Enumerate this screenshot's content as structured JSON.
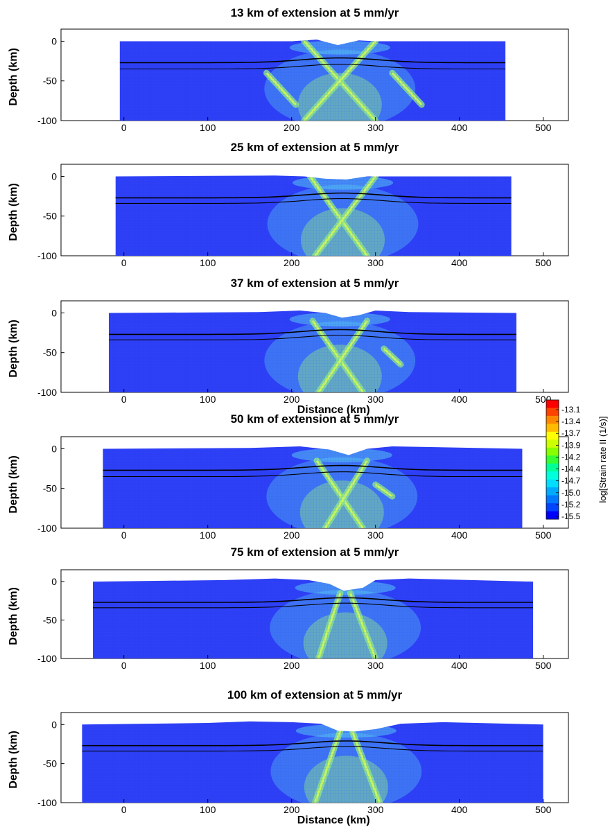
{
  "chart_data": [
    {
      "type": "heatmap",
      "title": "13 km of extension at 5 mm/yr",
      "ylabel": "Depth (km)",
      "xlabel": "",
      "xlim": [
        -75,
        530
      ],
      "ylim": [
        -100,
        10
      ],
      "xticks": [
        0,
        100,
        200,
        300,
        400,
        500
      ],
      "yticks": [
        0,
        -50,
        -100
      ],
      "domain_x": [
        -5,
        455
      ],
      "moho_depths": [
        -27,
        -35
      ],
      "shear_bands": [
        [
          215,
          0,
          300,
          -100
        ],
        [
          300,
          0,
          215,
          -100
        ],
        [
          170,
          -40,
          205,
          -80
        ],
        [
          320,
          -40,
          355,
          -80
        ]
      ],
      "topo": [
        [
          -5,
          0
        ],
        [
          200,
          0
        ],
        [
          230,
          2
        ],
        [
          255,
          -5
        ],
        [
          280,
          1
        ],
        [
          300,
          0
        ],
        [
          455,
          0
        ]
      ]
    },
    {
      "type": "heatmap",
      "title": "25 km of extension at 5 mm/yr",
      "ylabel": "Depth (km)",
      "xlabel": "",
      "xlim": [
        -75,
        530
      ],
      "ylim": [
        -100,
        10
      ],
      "xticks": [
        0,
        100,
        200,
        300,
        400,
        500
      ],
      "yticks": [
        0,
        -50,
        -100
      ],
      "domain_x": [
        -10,
        462
      ],
      "moho_depths": [
        -27,
        -34
      ],
      "shear_bands": [
        [
          222,
          0,
          290,
          -100
        ],
        [
          300,
          0,
          228,
          -100
        ]
      ],
      "topo": [
        [
          -10,
          0
        ],
        [
          180,
          1
        ],
        [
          215,
          0
        ],
        [
          240,
          -3
        ],
        [
          265,
          -4
        ],
        [
          290,
          0
        ],
        [
          462,
          0
        ]
      ]
    },
    {
      "type": "heatmap",
      "title": "37 km of extension at 5 mm/yr",
      "ylabel": "Depth (km)",
      "xlabel": "Distance (km)",
      "xlim": [
        -75,
        530
      ],
      "ylim": [
        -100,
        10
      ],
      "xticks": [
        0,
        100,
        200,
        300,
        400,
        500
      ],
      "yticks": [
        0,
        -50,
        -100
      ],
      "domain_x": [
        -18,
        468
      ],
      "moho_depths": [
        -27,
        -34
      ],
      "shear_bands": [
        [
          225,
          -10,
          285,
          -100
        ],
        [
          290,
          -10,
          232,
          -100
        ],
        [
          310,
          -45,
          330,
          -65
        ]
      ],
      "topo": [
        [
          -18,
          0
        ],
        [
          160,
          1
        ],
        [
          210,
          3
        ],
        [
          240,
          0
        ],
        [
          260,
          -6
        ],
        [
          280,
          -3
        ],
        [
          300,
          3
        ],
        [
          340,
          1
        ],
        [
          468,
          0
        ]
      ]
    },
    {
      "type": "heatmap",
      "title": "50 km of extension at 5 mm/yr",
      "ylabel": "Depth (km)",
      "xlabel": "",
      "xlim": [
        -75,
        530
      ],
      "ylim": [
        -100,
        10
      ],
      "xticks": [
        0,
        100,
        200,
        300,
        400,
        500
      ],
      "yticks": [
        0,
        -50,
        -100
      ],
      "domain_x": [
        -25,
        475
      ],
      "moho_depths": [
        -27,
        -35
      ],
      "shear_bands": [
        [
          230,
          -15,
          285,
          -100
        ],
        [
          290,
          -15,
          240,
          -100
        ],
        [
          300,
          -45,
          320,
          -60
        ]
      ],
      "topo": [
        [
          -25,
          0
        ],
        [
          150,
          1
        ],
        [
          210,
          3
        ],
        [
          245,
          -1
        ],
        [
          268,
          -8
        ],
        [
          290,
          0
        ],
        [
          320,
          3
        ],
        [
          475,
          0
        ]
      ]
    },
    {
      "type": "heatmap",
      "title": "75 km of extension at 5 mm/yr",
      "ylabel": "Depth (km)",
      "xlabel": "",
      "xlim": [
        -75,
        530
      ],
      "ylim": [
        -100,
        10
      ],
      "xticks": [
        0,
        100,
        200,
        300,
        400,
        500
      ],
      "yticks": [
        0,
        -50,
        -100
      ],
      "domain_x": [
        -37,
        488
      ],
      "moho_depths": [
        -27,
        -34
      ],
      "shear_bands": [
        [
          258,
          -15,
          232,
          -100
        ],
        [
          270,
          -15,
          300,
          -100
        ]
      ],
      "topo": [
        [
          -37,
          0
        ],
        [
          120,
          2
        ],
        [
          180,
          4
        ],
        [
          220,
          2
        ],
        [
          245,
          -3
        ],
        [
          262,
          -12
        ],
        [
          285,
          -8
        ],
        [
          300,
          2
        ],
        [
          340,
          4
        ],
        [
          488,
          0
        ]
      ]
    },
    {
      "type": "heatmap",
      "title": "100 km of extension at 5 mm/yr",
      "ylabel": "Depth (km)",
      "xlabel": "Distance (km)",
      "xlim": [
        -75,
        530
      ],
      "ylim": [
        -100,
        10
      ],
      "xticks": [
        0,
        100,
        200,
        300,
        400,
        500
      ],
      "yticks": [
        0,
        -50,
        -100
      ],
      "domain_x": [
        -50,
        500
      ],
      "moho_depths": [
        -27,
        -34
      ],
      "shear_bands": [
        [
          258,
          -8,
          228,
          -100
        ],
        [
          272,
          -8,
          305,
          -100
        ]
      ],
      "topo": [
        [
          -50,
          0
        ],
        [
          100,
          2
        ],
        [
          150,
          4
        ],
        [
          200,
          3
        ],
        [
          235,
          1
        ],
        [
          255,
          -8
        ],
        [
          275,
          -9
        ],
        [
          300,
          -6
        ],
        [
          330,
          1
        ],
        [
          380,
          3
        ],
        [
          500,
          0
        ]
      ]
    }
  ],
  "colorbar": {
    "label": "log[Strain rate II (1/s)]",
    "ticks": [
      "-13.1",
      "-13.4",
      "-13.7",
      "-13.9",
      "-14.2",
      "-14.4",
      "-14.7",
      "-15.0",
      "-15.2",
      "-15.5"
    ],
    "colors": [
      "#ff0000",
      "#ff4400",
      "#ff8800",
      "#ffbb00",
      "#ffff00",
      "#ccff00",
      "#88ff00",
      "#33ff33",
      "#00ff99",
      "#00ffdd",
      "#00ddff",
      "#00aaff",
      "#0077ff",
      "#0044ff",
      "#0000ff"
    ]
  },
  "colors": {
    "field": "#2d3ff5",
    "deform": "#5bd6f2",
    "band": "#8fe88a",
    "line": "#000000"
  }
}
